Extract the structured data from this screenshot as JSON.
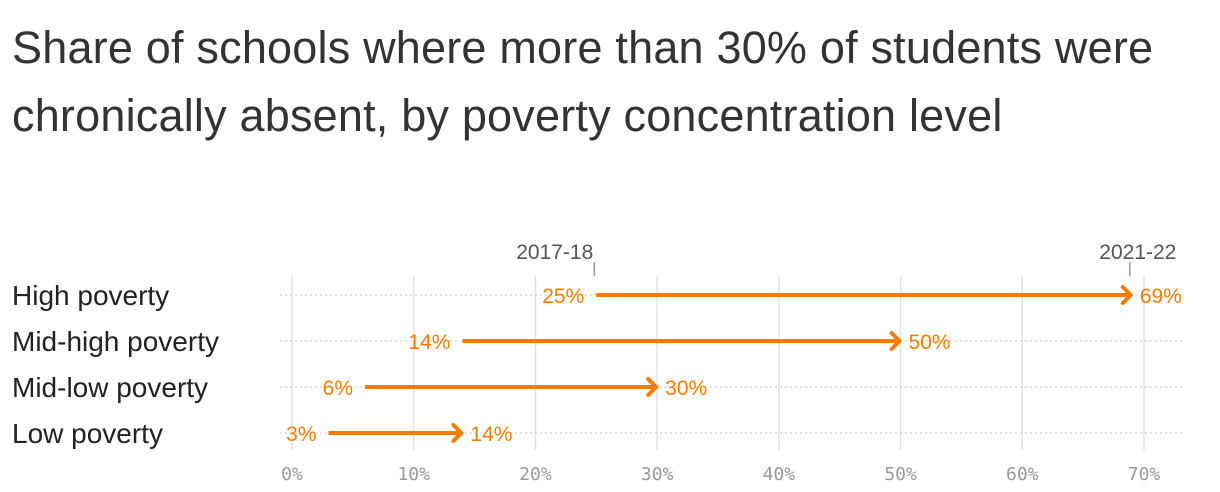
{
  "chart_data": {
    "type": "dumbbell-arrow",
    "title": "Share of schools where more than 30% of students were chronically absent, by poverty concentration level",
    "start_label": "2017-18",
    "end_label": "2021-22",
    "categories": [
      "High poverty",
      "Mid-high poverty",
      "Mid-low poverty",
      "Low poverty"
    ],
    "series": [
      {
        "name": "2017-18",
        "values": [
          25,
          14,
          6,
          3
        ]
      },
      {
        "name": "2021-22",
        "values": [
          69,
          50,
          30,
          14
        ]
      }
    ],
    "start_value_labels": [
      "25%",
      "14%",
      "6%",
      "3%"
    ],
    "end_value_labels": [
      "69%",
      "50%",
      "30%",
      "14%"
    ],
    "xlim": [
      0,
      74
    ],
    "xticks": [
      0,
      10,
      20,
      30,
      40,
      50,
      60,
      70
    ],
    "xtick_labels": [
      "0%",
      "10%",
      "20%",
      "30%",
      "40%",
      "50%",
      "60%",
      "70%"
    ],
    "grid": true,
    "color": "#f57c00"
  }
}
